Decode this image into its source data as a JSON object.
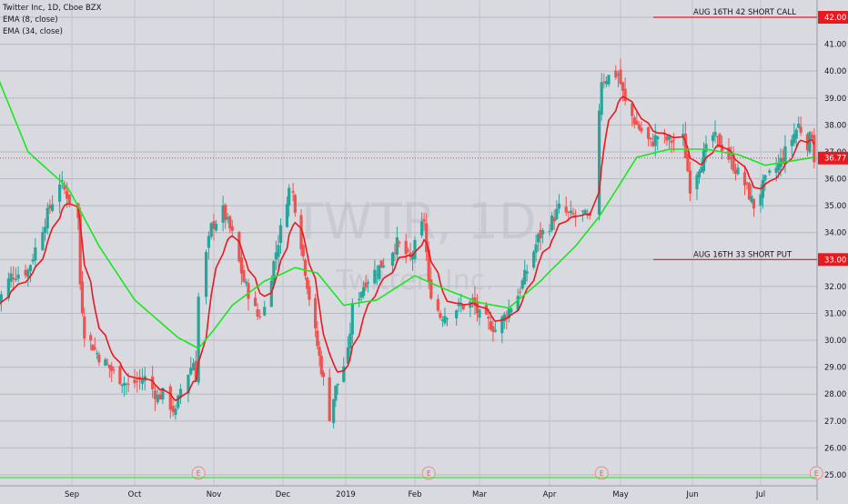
{
  "chart_data": {
    "type": "candlestick",
    "title": "Twitter Inc, 1D, Cboe BZX",
    "watermark": {
      "symbol": "TWTR, 1D",
      "name": "Twitter, Inc."
    },
    "indicators": [
      {
        "label": "EMA (8, close)",
        "color": "#e8191f"
      },
      {
        "label": "EMA (34, close)",
        "color": "#17e81f"
      }
    ],
    "ylim": [
      25,
      42.5
    ],
    "y_ticks": [
      "25.00",
      "26.00",
      "27.00",
      "28.00",
      "29.00",
      "30.00",
      "31.00",
      "32.00",
      "33.00",
      "34.00",
      "35.00",
      "36.00",
      "37.00",
      "38.00",
      "39.00",
      "40.00",
      "41.00",
      "42.00"
    ],
    "x_ticks": [
      "Sep",
      "Oct",
      "Nov",
      "Dec",
      "2019",
      "Feb",
      "Mar",
      "Apr",
      "May",
      "Jun",
      "Jul"
    ],
    "current_price": "36.77",
    "annotations": [
      {
        "text": "AUG 16TH 42 SHORT CALL",
        "price": 42.0,
        "price_label": "42.00"
      },
      {
        "text": "AUG 16TH 33 SHORT PUT",
        "price": 33.0,
        "price_label": "33.00"
      }
    ],
    "earnings_markers": [
      {
        "label": "E",
        "x_date": "2018-10-26"
      },
      {
        "label": "E",
        "x_date": "2019-02-07"
      },
      {
        "label": "E",
        "x_date": "2019-04-23"
      },
      {
        "label": "E",
        "x_date": "2019-07-26"
      }
    ],
    "close_anchors": [
      [
        "2018-08-01",
        31.3
      ],
      [
        "2018-08-07",
        32.4
      ],
      [
        "2018-08-14",
        32.6
      ],
      [
        "2018-08-20",
        34.2
      ],
      [
        "2018-08-27",
        35.9
      ],
      [
        "2018-08-30",
        35.4
      ],
      [
        "2018-09-04",
        34.5
      ],
      [
        "2018-09-05",
        32.1
      ],
      [
        "2018-09-07",
        30.3
      ],
      [
        "2018-09-14",
        29.4
      ],
      [
        "2018-09-21",
        28.8
      ],
      [
        "2018-09-28",
        28.3
      ],
      [
        "2018-10-05",
        28.6
      ],
      [
        "2018-10-10",
        27.9
      ],
      [
        "2018-10-12",
        28.0
      ],
      [
        "2018-10-17",
        27.3
      ],
      [
        "2018-10-19",
        28.2
      ],
      [
        "2018-10-24",
        29.2
      ],
      [
        "2018-10-25",
        28.7
      ],
      [
        "2018-10-26",
        31.6
      ],
      [
        "2018-10-31",
        34.2
      ],
      [
        "2018-11-05",
        34.8
      ],
      [
        "2018-11-09",
        33.9
      ],
      [
        "2018-11-14",
        32.2
      ],
      [
        "2018-11-20",
        30.9
      ],
      [
        "2018-11-23",
        31.2
      ],
      [
        "2018-11-28",
        33.3
      ],
      [
        "2018-12-03",
        35.3
      ],
      [
        "2018-12-05",
        35.9
      ],
      [
        "2018-12-10",
        33.6
      ],
      [
        "2018-12-14",
        31.6
      ],
      [
        "2018-12-18",
        29.8
      ],
      [
        "2018-12-21",
        28.5
      ],
      [
        "2018-12-24",
        27.2
      ],
      [
        "2018-12-27",
        28.2
      ],
      [
        "2019-01-02",
        29.5
      ],
      [
        "2019-01-04",
        31.2
      ],
      [
        "2019-01-10",
        32.2
      ],
      [
        "2019-01-17",
        32.8
      ],
      [
        "2019-01-24",
        33.6
      ],
      [
        "2019-01-30",
        33.0
      ],
      [
        "2019-02-05",
        34.5
      ],
      [
        "2019-02-07",
        32.0
      ],
      [
        "2019-02-12",
        30.9
      ],
      [
        "2019-02-19",
        31.2
      ],
      [
        "2019-02-26",
        31.4
      ],
      [
        "2019-03-01",
        30.9
      ],
      [
        "2019-03-06",
        30.6
      ],
      [
        "2019-03-08",
        30.4
      ],
      [
        "2019-03-13",
        31.0
      ],
      [
        "2019-03-18",
        31.7
      ],
      [
        "2019-03-22",
        32.6
      ],
      [
        "2019-03-27",
        33.8
      ],
      [
        "2019-04-01",
        34.3
      ],
      [
        "2019-04-05",
        34.9
      ],
      [
        "2019-04-10",
        34.6
      ],
      [
        "2019-04-15",
        34.7
      ],
      [
        "2019-04-18",
        34.4
      ],
      [
        "2019-04-23",
        39.7
      ],
      [
        "2019-04-26",
        39.8
      ],
      [
        "2019-04-30",
        39.9
      ],
      [
        "2019-05-03",
        38.8
      ],
      [
        "2019-05-08",
        38.0
      ],
      [
        "2019-05-14",
        37.3
      ],
      [
        "2019-05-17",
        37.6
      ],
      [
        "2019-05-22",
        37.4
      ],
      [
        "2019-05-28",
        37.5
      ],
      [
        "2019-05-31",
        35.7
      ],
      [
        "2019-06-04",
        36.5
      ],
      [
        "2019-06-10",
        37.6
      ],
      [
        "2019-06-14",
        37.2
      ],
      [
        "2019-06-19",
        36.5
      ],
      [
        "2019-06-24",
        35.8
      ],
      [
        "2019-06-28",
        35.0
      ],
      [
        "2019-07-03",
        35.9
      ],
      [
        "2019-07-09",
        36.5
      ],
      [
        "2019-07-15",
        37.5
      ],
      [
        "2019-07-18",
        38.0
      ],
      [
        "2019-07-22",
        37.3
      ],
      [
        "2019-07-24",
        37.7
      ],
      [
        "2019-07-25",
        36.77
      ]
    ],
    "ema34_anchors": [
      [
        "2018-08-01",
        39.9
      ],
      [
        "2018-08-14",
        37.0
      ],
      [
        "2018-08-30",
        35.7
      ],
      [
        "2018-09-14",
        33.5
      ],
      [
        "2018-10-01",
        31.5
      ],
      [
        "2018-10-18",
        30.1
      ],
      [
        "2018-10-26",
        29.7
      ],
      [
        "2018-11-09",
        31.3
      ],
      [
        "2018-11-23",
        32.2
      ],
      [
        "2018-12-07",
        32.7
      ],
      [
        "2018-12-18",
        32.5
      ],
      [
        "2018-12-31",
        31.3
      ],
      [
        "2019-01-15",
        31.5
      ],
      [
        "2019-02-01",
        32.4
      ],
      [
        "2019-02-14",
        31.9
      ],
      [
        "2019-03-01",
        31.4
      ],
      [
        "2019-03-14",
        31.2
      ],
      [
        "2019-03-28",
        32.2
      ],
      [
        "2019-04-12",
        33.5
      ],
      [
        "2019-04-22",
        34.6
      ],
      [
        "2019-05-08",
        36.8
      ],
      [
        "2019-05-22",
        37.1
      ],
      [
        "2019-06-07",
        37.1
      ],
      [
        "2019-06-21",
        36.9
      ],
      [
        "2019-07-03",
        36.5
      ],
      [
        "2019-07-25",
        36.8
      ]
    ]
  }
}
